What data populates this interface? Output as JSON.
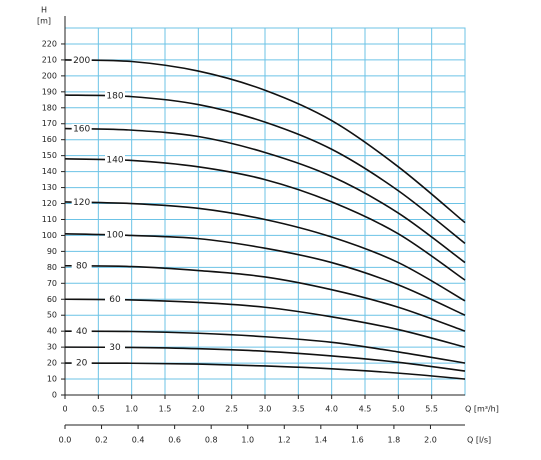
{
  "chart_data": {
    "type": "line",
    "y_label": "H",
    "y_unit": "[m]",
    "x_label": "Q [m³/h]",
    "x2_label": "Q [l/s]",
    "x": [
      0,
      1,
      2,
      3,
      4,
      5,
      6
    ],
    "xlim": [
      0,
      6
    ],
    "xticks": [
      0,
      0.5,
      {
        "value": 1,
        "label": "1.0"
      },
      1.5,
      {
        "value": 2,
        "label": "2.0"
      },
      2.5,
      {
        "value": 3,
        "label": "3.0"
      },
      3.5,
      {
        "value": 4,
        "label": "4.0"
      },
      4.5,
      {
        "value": 5,
        "label": "5.0"
      },
      5.5
    ],
    "x2lim": [
      0,
      2.2
    ],
    "x2ticks": [
      {
        "value": 0,
        "label": "0.0"
      },
      0.2,
      0.4,
      0.6,
      0.8,
      {
        "value": 1,
        "label": "1.0"
      },
      1.2,
      1.4,
      1.6,
      1.8,
      {
        "value": 2,
        "label": "2.0"
      }
    ],
    "ylim": [
      0,
      230
    ],
    "yticks": [
      0,
      10,
      20,
      30,
      40,
      50,
      60,
      70,
      80,
      90,
      100,
      110,
      120,
      130,
      140,
      150,
      160,
      170,
      180,
      190,
      200,
      210,
      220
    ],
    "grid": true,
    "grid_color": "#6cc3e6",
    "series": [
      {
        "name": "200",
        "color": "#111111",
        "values": [
          210,
          209,
          203,
          191,
          172,
          143,
          108
        ]
      },
      {
        "name": "180",
        "color": "#111111",
        "values": [
          188,
          187,
          182,
          171,
          154,
          128,
          95
        ]
      },
      {
        "name": "160",
        "color": "#111111",
        "values": [
          167,
          166,
          162,
          152,
          137,
          114,
          83
        ]
      },
      {
        "name": "140",
        "color": "#111111",
        "values": [
          148,
          147,
          143,
          135,
          121,
          101,
          72
        ]
      },
      {
        "name": "120",
        "color": "#111111",
        "values": [
          121,
          120,
          117,
          110,
          99,
          83,
          59
        ]
      },
      {
        "name": "100",
        "color": "#111111",
        "values": [
          101,
          100,
          98,
          92,
          83,
          69,
          50
        ]
      },
      {
        "name": "80",
        "color": "#111111",
        "values": [
          81,
          80.5,
          78,
          74,
          66,
          55,
          40
        ]
      },
      {
        "name": "60",
        "color": "#111111",
        "values": [
          60,
          59.6,
          58,
          55,
          49,
          41,
          30
        ]
      },
      {
        "name": "40",
        "color": "#111111",
        "values": [
          40,
          39.8,
          38.7,
          36.5,
          33,
          27,
          20
        ]
      },
      {
        "name": "30",
        "color": "#111111",
        "values": [
          30,
          29.8,
          29,
          27.4,
          24.5,
          20.5,
          15
        ]
      },
      {
        "name": "20",
        "color": "#111111",
        "values": [
          20,
          19.9,
          19.4,
          18.2,
          16.4,
          13.7,
          10
        ]
      }
    ]
  }
}
